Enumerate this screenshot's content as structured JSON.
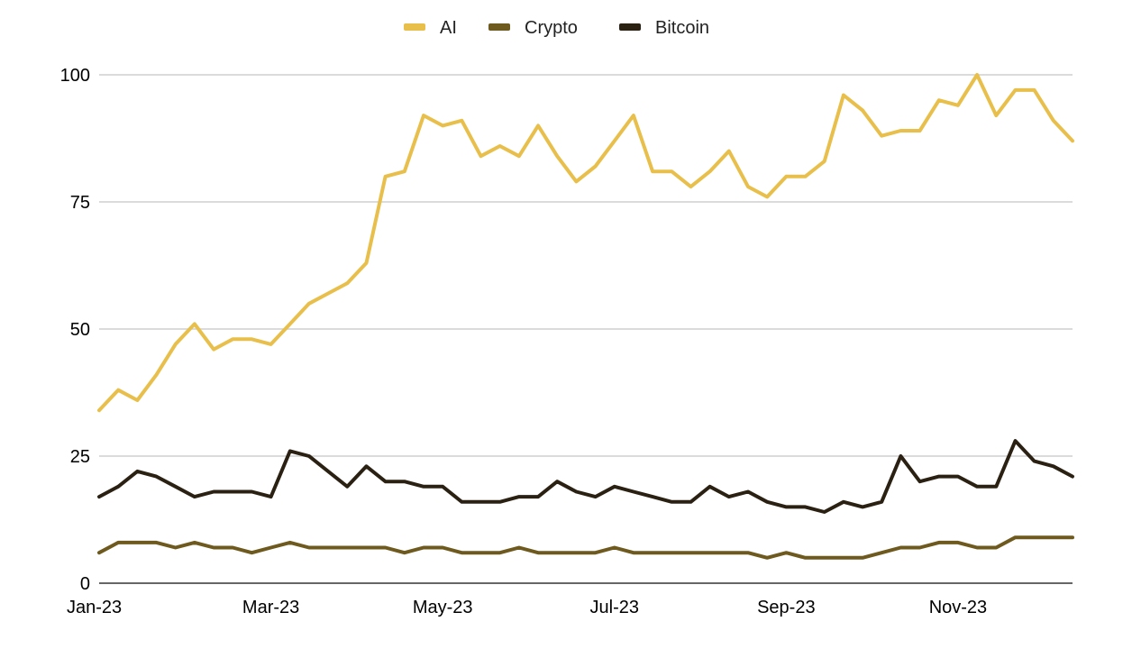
{
  "chart_data": {
    "type": "line",
    "title": "",
    "xlabel": "",
    "ylabel": "",
    "ylim": [
      0,
      100
    ],
    "yticks": [
      0,
      25,
      50,
      75,
      100
    ],
    "xtick_labels": [
      "Jan-23",
      "Mar-23",
      "May-23",
      "Jul-23",
      "Sep-23",
      "Nov-23"
    ],
    "xtick_index": [
      0,
      9,
      18,
      27,
      36,
      45
    ],
    "grid": true,
    "legend_position": "top-center",
    "series": [
      {
        "name": "AI",
        "color": "#e8bf4a",
        "values": [
          34,
          38,
          36,
          41,
          47,
          51,
          46,
          48,
          48,
          47,
          51,
          55,
          57,
          59,
          63,
          80,
          81,
          92,
          90,
          91,
          84,
          86,
          84,
          90,
          84,
          79,
          82,
          87,
          92,
          81,
          81,
          78,
          81,
          85,
          78,
          76,
          80,
          80,
          83,
          96,
          93,
          88,
          89,
          89,
          95,
          94,
          100,
          92,
          97,
          97,
          91,
          87
        ]
      },
      {
        "name": "Crypto",
        "color": "#6e5a1e",
        "values": [
          6,
          8,
          8,
          8,
          7,
          8,
          7,
          7,
          6,
          7,
          8,
          7,
          7,
          7,
          7,
          7,
          6,
          7,
          7,
          6,
          6,
          6,
          7,
          6,
          6,
          6,
          6,
          7,
          6,
          6,
          6,
          6,
          6,
          6,
          6,
          5,
          6,
          5,
          5,
          5,
          5,
          6,
          7,
          7,
          8,
          8,
          7,
          7,
          9,
          9,
          9,
          9
        ]
      },
      {
        "name": "Bitcoin",
        "color": "#2a2113",
        "values": [
          17,
          19,
          22,
          21,
          19,
          17,
          18,
          18,
          18,
          17,
          26,
          25,
          22,
          19,
          23,
          20,
          20,
          19,
          19,
          16,
          16,
          16,
          17,
          17,
          20,
          18,
          17,
          19,
          18,
          17,
          16,
          16,
          19,
          17,
          18,
          16,
          15,
          15,
          14,
          16,
          15,
          16,
          25,
          20,
          21,
          21,
          19,
          19,
          28,
          24,
          23,
          21
        ]
      }
    ]
  }
}
